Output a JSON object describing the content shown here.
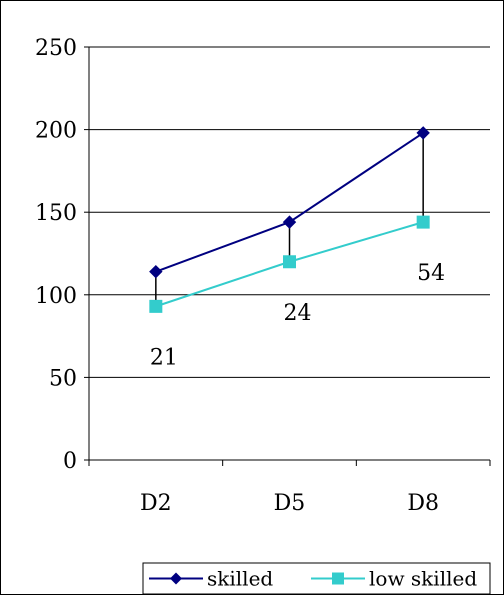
{
  "chart_data": {
    "type": "line",
    "categories": [
      "D2",
      "D5",
      "D8"
    ],
    "ylim": [
      0,
      250
    ],
    "yticks": [
      0,
      50,
      100,
      150,
      200,
      250
    ],
    "grid": true,
    "legend_position": "bottom-right",
    "series": [
      {
        "name": "skilled",
        "values": [
          114,
          144,
          198
        ],
        "color": "#000080",
        "marker": "diamond"
      },
      {
        "name": "low skilled",
        "values": [
          93,
          120,
          144
        ],
        "color": "#33CCCC",
        "marker": "square"
      }
    ],
    "gap_labels": [
      "21",
      "24",
      "54"
    ]
  }
}
